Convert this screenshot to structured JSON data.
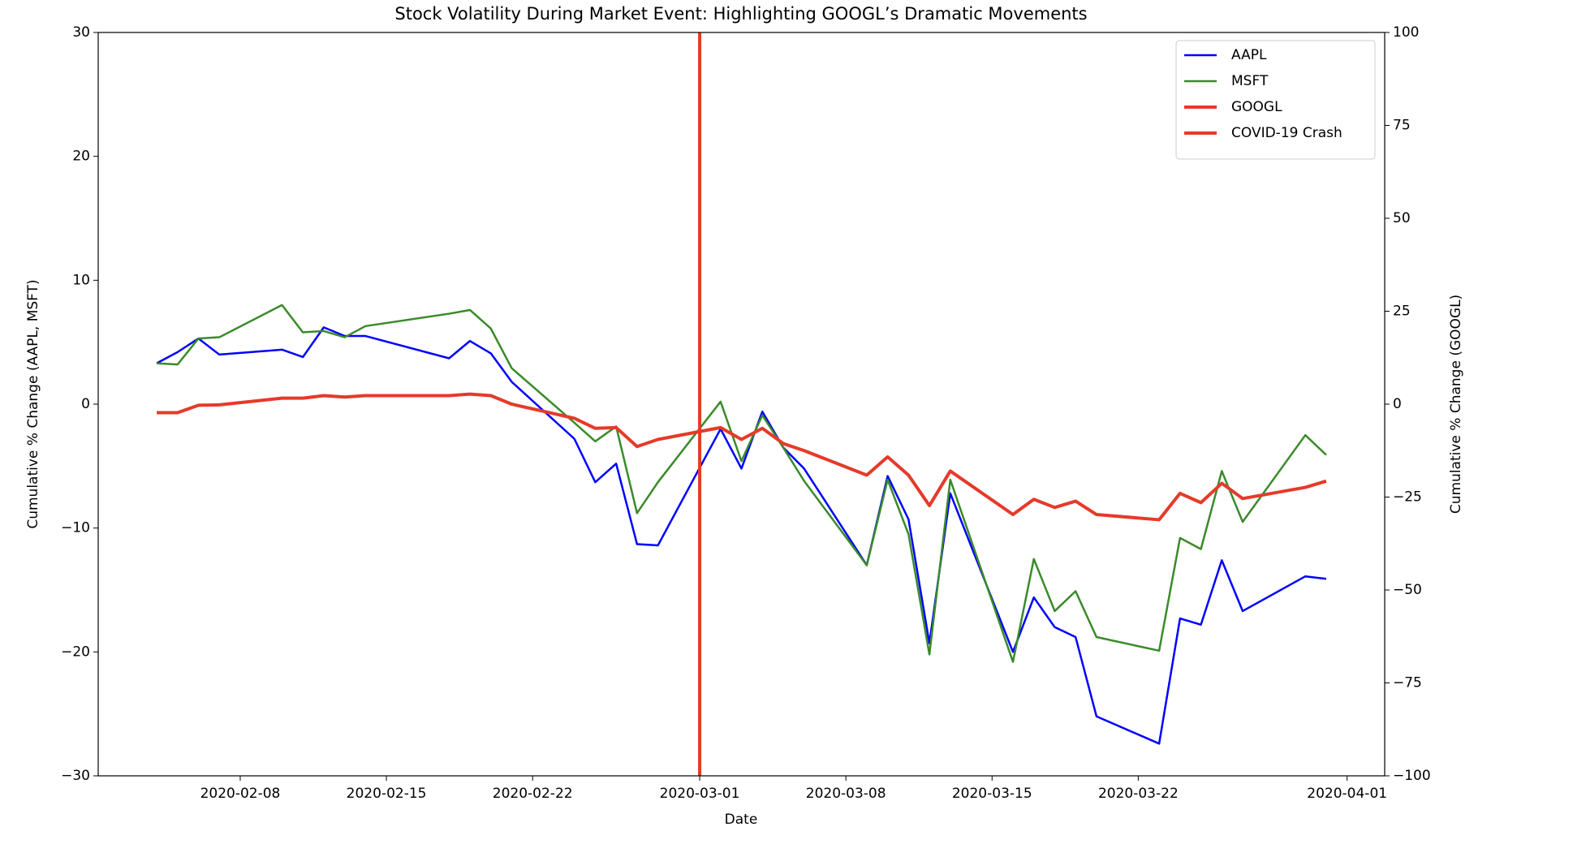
{
  "chart_data": {
    "type": "line",
    "title": "Stock Volatility During Market Event: Highlighting GOOGL’s Dramatic Movements",
    "xlabel": "Date",
    "ylabel": "Cumulative % Change (AAPL, MSFT)",
    "y2label": "Cumulative % Change (GOOGL)",
    "x": [
      "2020-02-04",
      "2020-02-05",
      "2020-02-06",
      "2020-02-07",
      "2020-02-10",
      "2020-02-11",
      "2020-02-12",
      "2020-02-13",
      "2020-02-14",
      "2020-02-18",
      "2020-02-19",
      "2020-02-20",
      "2020-02-21",
      "2020-02-24",
      "2020-02-25",
      "2020-02-26",
      "2020-02-27",
      "2020-02-28",
      "2020-03-02",
      "2020-03-03",
      "2020-03-04",
      "2020-03-05",
      "2020-03-06",
      "2020-03-09",
      "2020-03-10",
      "2020-03-11",
      "2020-03-12",
      "2020-03-13",
      "2020-03-16",
      "2020-03-17",
      "2020-03-18",
      "2020-03-19",
      "2020-03-20",
      "2020-03-23",
      "2020-03-24",
      "2020-03-25",
      "2020-03-26",
      "2020-03-27",
      "2020-03-30",
      "2020-03-31"
    ],
    "series": [
      {
        "name": "AAPL",
        "color": "#0000ff",
        "values": [
          3.3,
          4.2,
          5.3,
          4.0,
          4.4,
          3.8,
          6.2,
          5.5,
          5.5,
          3.7,
          5.1,
          4.1,
          1.8,
          -2.8,
          -6.3,
          -4.8,
          -11.3,
          -11.4,
          -2.0,
          -5.2,
          -0.6,
          -3.5,
          -5.2,
          -13.0,
          -5.8,
          -9.3,
          -19.3,
          -7.2,
          -20.0,
          -15.6,
          -18.0,
          -18.8,
          -25.2,
          -27.4,
          -17.3,
          -17.8,
          -12.6,
          -16.7,
          -13.9,
          -14.1
        ]
      },
      {
        "name": "MSFT",
        "color": "#3a8a2a",
        "values": [
          3.3,
          3.2,
          5.3,
          5.4,
          8.0,
          5.8,
          5.9,
          5.4,
          6.3,
          7.3,
          7.6,
          6.1,
          2.9,
          -1.5,
          -3.0,
          -1.8,
          -8.8,
          -6.3,
          0.2,
          -4.6,
          -0.9,
          -3.5,
          -6.2,
          -13.0,
          -6.1,
          -10.5,
          -20.2,
          -6.1,
          -20.8,
          -12.5,
          -16.7,
          -15.1,
          -18.8,
          -19.9,
          -10.8,
          -11.7,
          -5.4,
          -9.5,
          -2.5,
          -4.1
        ]
      },
      {
        "name": "GOOGL",
        "color": "#e53a2a",
        "axis": "y2",
        "values": [
          -2.3,
          -2.3,
          -0.3,
          -0.2,
          1.6,
          1.6,
          2.3,
          1.9,
          2.3,
          2.3,
          2.7,
          2.3,
          0,
          -3.8,
          -6.5,
          -6.3,
          -11.4,
          -9.5,
          -6.3,
          -9.5,
          -6.5,
          -10.6,
          -12.5,
          -19.1,
          -14.2,
          -19.1,
          -27.3,
          -18.0,
          -29.7,
          -25.6,
          -27.8,
          -26.1,
          -29.7,
          -31.1,
          -24.0,
          -26.5,
          -21.3,
          -25.4,
          -22.4,
          -20.7
        ]
      }
    ],
    "vline": {
      "name": "COVID-19 Crash",
      "x": "2020-03-01",
      "color": "#e53a2a"
    },
    "xlim": [
      "2020-02-01T04:48",
      "2020-04-02T19:12"
    ],
    "xticks": [
      "2020-02-08",
      "2020-02-15",
      "2020-02-22",
      "2020-03-01",
      "2020-03-08",
      "2020-03-15",
      "2020-03-22",
      "2020-04-01"
    ],
    "ylim": [
      -30,
      30
    ],
    "yticks": [
      {
        "value": -30,
        "label": "−30"
      },
      {
        "value": -20,
        "label": "−20"
      },
      {
        "value": -10,
        "label": "−10"
      },
      0,
      10,
      20,
      30
    ],
    "y2lim": [
      -100,
      100
    ],
    "y2ticks": [
      {
        "value": -100,
        "label": "−100"
      },
      {
        "value": -75,
        "label": "−75"
      },
      {
        "value": -50,
        "label": "−50"
      },
      {
        "value": -25,
        "label": "−25"
      },
      0,
      25,
      50,
      75,
      100
    ],
    "legend": "upper right"
  }
}
